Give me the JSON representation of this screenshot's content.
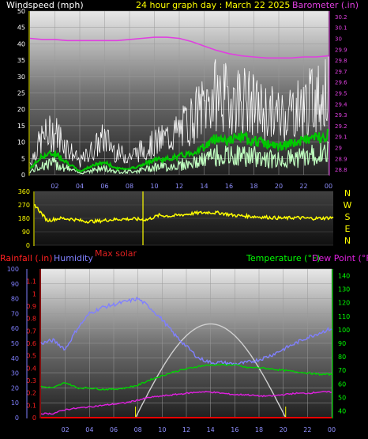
{
  "header": {
    "left_label": "Windspeed (mph)",
    "title": "24 hour graph day : March 22 2025",
    "right_label": "Barometer (.in)"
  },
  "x_ticks": [
    "02",
    "04",
    "06",
    "08",
    "10",
    "12",
    "14",
    "16",
    "18",
    "20",
    "22",
    "00"
  ],
  "wind_panel": {
    "y_ticks": [
      "0",
      "5",
      "10",
      "15",
      "20",
      "25",
      "30",
      "35",
      "40",
      "45",
      "50"
    ],
    "baro_ticks": [
      "28.8",
      "28.9",
      "29",
      "29.1",
      "29.2",
      "29.3",
      "29.4",
      "29.5",
      "29.6",
      "29.7",
      "29.8",
      "29.9",
      "30",
      "30.1",
      "30.2"
    ]
  },
  "dir_panel": {
    "y_ticks": [
      "0",
      "90",
      "180",
      "270",
      "360"
    ],
    "compass": [
      "N",
      "W",
      "S",
      "E",
      "N"
    ],
    "max_solar_label": "Max solar"
  },
  "bottom_panel": {
    "rain_label": "Rainfall (.in)",
    "humidity_label": "Humidity",
    "temp_label": "Temperature (°F)",
    "dew_label": "Dew Point (°F)",
    "humidity_ticks": [
      "0",
      "10",
      "20",
      "30",
      "40",
      "50",
      "60",
      "70",
      "80",
      "90",
      "100"
    ],
    "rain_ticks": [
      "0",
      "0.1",
      "0.2",
      "0.3",
      "0.4",
      "0.5",
      "0.6",
      "0.7",
      "0.8",
      "0.9",
      "1",
      "1.1"
    ],
    "temp_ticks": [
      "40",
      "50",
      "60",
      "70",
      "80",
      "90",
      "100",
      "110",
      "120",
      "130",
      "140"
    ]
  },
  "colors": {
    "wind_gust": "#ffffff",
    "wind_avg": "#00c800",
    "wind_light": "#c0ffc0",
    "barometer": "#e040e0",
    "direction": "#ffff00",
    "humidity": "#8080ff",
    "temperature": "#00d000",
    "dewpoint": "#e020e0",
    "solar": "#d0d0d0",
    "rain": "#ff0000"
  },
  "chart_data": [
    {
      "type": "line",
      "title": "24 hour graph day : March 22 2025",
      "xlabel": "",
      "ylabel": "Windspeed (mph)",
      "y2label": "Barometer (.in)",
      "ylim": [
        0,
        50
      ],
      "y2lim": [
        28.75,
        30.25
      ],
      "x": [
        0,
        1,
        2,
        3,
        4,
        5,
        6,
        7,
        8,
        9,
        10,
        11,
        12,
        13,
        14,
        15,
        16,
        17,
        18,
        19,
        20,
        21,
        22,
        23,
        24
      ],
      "series": [
        {
          "name": "Barometer (.in)",
          "axis": "right",
          "values": [
            30.0,
            29.99,
            29.99,
            29.98,
            29.98,
            29.98,
            29.98,
            29.98,
            29.99,
            30.0,
            30.01,
            30.01,
            30.0,
            29.97,
            29.93,
            29.89,
            29.86,
            29.84,
            29.83,
            29.82,
            29.82,
            29.82,
            29.83,
            29.83,
            29.84
          ]
        },
        {
          "name": "",
          "axis": "left",
          "values": [
            2,
            6,
            7,
            4,
            1,
            3,
            4,
            2,
            2,
            3,
            5,
            5,
            6,
            7,
            9,
            12,
            11,
            12,
            11,
            10,
            9,
            10,
            11,
            12,
            13
          ]
        },
        {
          "name": "",
          "axis": "left",
          "values": [
            4,
            12,
            14,
            9,
            4,
            8,
            12,
            7,
            6,
            8,
            10,
            12,
            14,
            18,
            22,
            26,
            24,
            25,
            22,
            20,
            19,
            21,
            22,
            25,
            26
          ]
        }
      ]
    },
    {
      "type": "line",
      "title": "",
      "ylabel": "",
      "ylim": [
        0,
        360
      ],
      "x": [
        0,
        1,
        2,
        3,
        4,
        5,
        6,
        7,
        8,
        9,
        10,
        11,
        12,
        13,
        14,
        15,
        16,
        17,
        18,
        19,
        20,
        21,
        22,
        23,
        24
      ],
      "series": [
        {
          "name": "",
          "values": [
            270,
            165,
            180,
            175,
            160,
            160,
            170,
            175,
            175,
            170,
            200,
            195,
            205,
            215,
            220,
            215,
            200,
            195,
            190,
            185,
            180,
            185,
            180,
            180,
            185
          ]
        }
      ]
    },
    {
      "type": "line",
      "title": "",
      "ylabel": "Humidity",
      "y2label": "Temperature (°F)",
      "ylim": [
        0,
        100
      ],
      "y2lim": [
        35,
        145
      ],
      "x": [
        0,
        1,
        2,
        3,
        4,
        5,
        6,
        7,
        8,
        9,
        10,
        11,
        12,
        13,
        14,
        15,
        16,
        17,
        18,
        19,
        20,
        21,
        22,
        23,
        24
      ],
      "series": [
        {
          "name": "Humidity",
          "axis": "left",
          "values": [
            50,
            52,
            46,
            60,
            70,
            74,
            76,
            78,
            80,
            74,
            66,
            56,
            48,
            40,
            37,
            37,
            36,
            37,
            39,
            42,
            46,
            50,
            54,
            57,
            60
          ]
        },
        {
          "name": "Temperature (°F)",
          "axis": "right",
          "values": [
            58,
            57,
            61,
            57,
            57,
            56,
            56,
            57,
            59,
            63,
            66,
            69,
            71,
            73,
            74,
            74,
            74,
            72,
            72,
            71,
            70,
            69,
            68,
            67,
            67
          ]
        },
        {
          "name": "Dew Point (°F)",
          "axis": "right",
          "values": [
            38,
            38,
            41,
            42,
            43,
            44,
            45,
            46,
            48,
            50,
            51,
            52,
            53,
            54,
            54,
            53,
            52,
            52,
            51,
            51,
            52,
            53,
            53,
            54,
            54
          ]
        }
      ]
    }
  ]
}
